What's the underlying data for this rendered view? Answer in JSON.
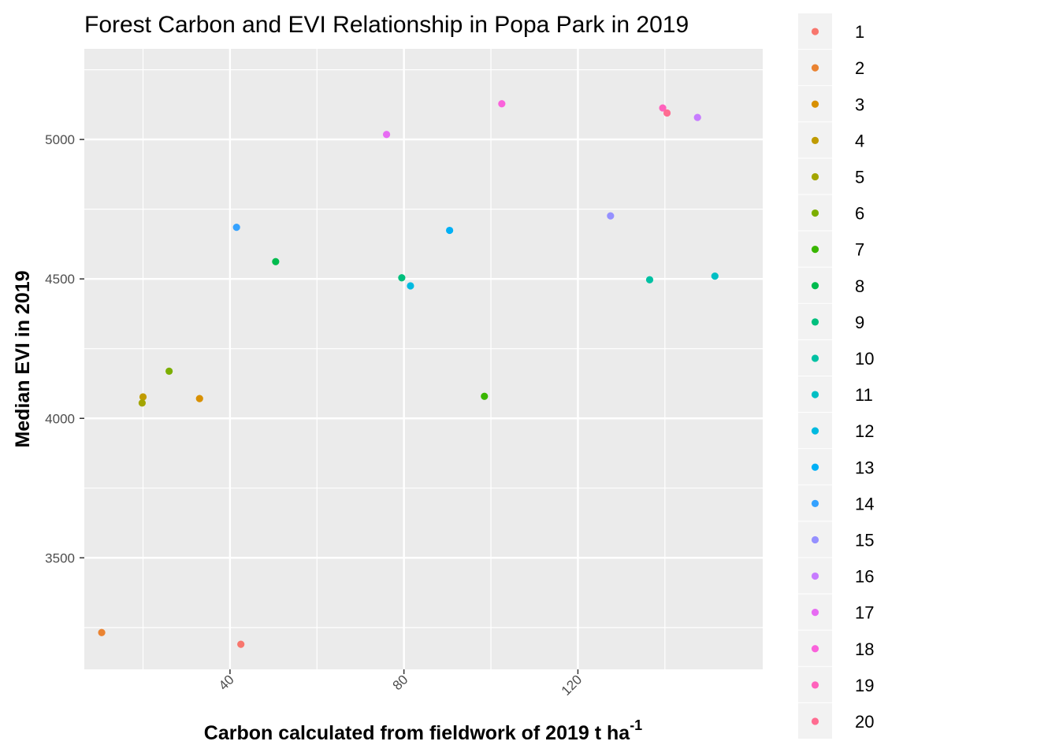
{
  "chart_data": {
    "type": "scatter",
    "title": "Forest Carbon and EVI Relationship in Popa Park in 2019",
    "xlabel": "Carbon calculated from fieldwork of 2019 t ha",
    "xlabel_superscript": "-1",
    "ylabel": "Median EVI in 2019",
    "xlim": [
      6.5,
      162.5
    ],
    "ylim": [
      3100,
      5325
    ],
    "x_ticks": [
      40,
      80,
      120
    ],
    "x_tick_labels": [
      "40",
      "80",
      "120"
    ],
    "y_ticks": [
      3500,
      4000,
      4500,
      5000
    ],
    "y_tick_labels": [
      "3500",
      "4000",
      "4500",
      "5000"
    ],
    "grid": true,
    "legend_position": "right",
    "series": [
      {
        "name": "1",
        "color": "#F8766D",
        "x": 42.5,
        "y": 3190
      },
      {
        "name": "2",
        "color": "#EA8331",
        "x": 10.5,
        "y": 3232
      },
      {
        "name": "3",
        "color": "#D89000",
        "x": 33.0,
        "y": 4071
      },
      {
        "name": "4",
        "color": "#C09B00",
        "x": 20.0,
        "y": 4077
      },
      {
        "name": "5",
        "color": "#A3A500",
        "x": 19.8,
        "y": 4055
      },
      {
        "name": "6",
        "color": "#7CAE00",
        "x": 26.0,
        "y": 4169
      },
      {
        "name": "7",
        "color": "#39B600",
        "x": 98.5,
        "y": 4079
      },
      {
        "name": "8",
        "color": "#00BB4E",
        "x": 50.5,
        "y": 4562
      },
      {
        "name": "9",
        "color": "#00BF7D",
        "x": 79.5,
        "y": 4504
      },
      {
        "name": "10",
        "color": "#00C1A3",
        "x": 136.5,
        "y": 4497
      },
      {
        "name": "11",
        "color": "#00BFC4",
        "x": 151.5,
        "y": 4510
      },
      {
        "name": "12",
        "color": "#00BAE0",
        "x": 81.5,
        "y": 4475
      },
      {
        "name": "13",
        "color": "#00B0F6",
        "x": 90.5,
        "y": 4674
      },
      {
        "name": "14",
        "color": "#35A2FF",
        "x": 41.5,
        "y": 4685
      },
      {
        "name": "15",
        "color": "#9590FF",
        "x": 127.5,
        "y": 4726
      },
      {
        "name": "16",
        "color": "#C77CFF",
        "x": 147.5,
        "y": 5079
      },
      {
        "name": "17",
        "color": "#E76BF3",
        "x": 76.0,
        "y": 5018
      },
      {
        "name": "18",
        "color": "#FA62DB",
        "x": 102.5,
        "y": 5128
      },
      {
        "name": "19",
        "color": "#FF62BC",
        "x": 139.5,
        "y": 5113
      },
      {
        "name": "20",
        "color": "#FF6C91",
        "x": 140.5,
        "y": 5095
      }
    ]
  }
}
